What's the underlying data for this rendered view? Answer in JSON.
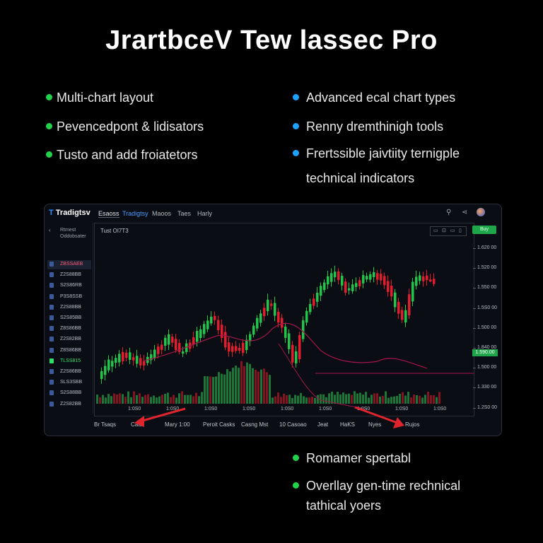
{
  "title": "JrartbceV Tew lassec Pro",
  "features_left": [
    {
      "text": "Multi-chart layout"
    },
    {
      "text": "Pevencedpont & lidisators"
    },
    {
      "text": "Tusto and add froiatetors"
    }
  ],
  "features_right": [
    {
      "text": "Advanced ecal chart types"
    },
    {
      "text": "Renny dremthinigh tools"
    },
    {
      "text": "Frertssible jaivtiity ternigple"
    },
    {
      "text": "technical indicators"
    }
  ],
  "features_bottom": [
    {
      "text": "Romamer spertabl"
    },
    {
      "text": "Overllay gen-time rechnical"
    },
    {
      "text": "tathical yoers"
    }
  ],
  "platform": {
    "logo_mark": "T",
    "logo_text": "Tradigtsv",
    "tabs": [
      "Esaoss",
      "Tradigtsy",
      "Maoos",
      "Taes",
      "Harly"
    ],
    "search_icon": "search-icon",
    "share_icon": "share-icon",
    "sidebar_header": [
      "Rtmest",
      "Oddobsater"
    ],
    "sidebar_items": [
      "ZBSSAEB",
      "Z2S88BB",
      "S2S86RB",
      "P3S8SSB",
      "Z2S88BB",
      "S2S85BB",
      "Z8S86BB",
      "Z2S82BB",
      "Z8S86BB",
      "TLSS815",
      "Z2S86BB",
      "SLS3SBB",
      "S2S88BB",
      "Z2S82BB"
    ],
    "chart_label": "Tust OI7T3",
    "chart_tools": [
      "▭",
      "⊡",
      "▭",
      "▯"
    ],
    "buy_label": "Buy",
    "price_ticks": [
      "1.620 00",
      "1.520 00",
      "1.550 00",
      "1.5S0 00",
      "1.500 00",
      "1.840 00",
      "1.500 00",
      "1.330 00",
      "1.2S0 00"
    ],
    "price_highlight": "1.590.00",
    "time_ticks": [
      "1:0S0",
      "1:0S0",
      "1:0S0",
      "1:0S0",
      "1:0S0",
      "1:0S0",
      "1:0S0",
      "1:0S0",
      "1:0S0"
    ],
    "bottom_bar": [
      "Br Tsaqs",
      "Cats",
      "Mary 1:00",
      "Peroit Casks",
      "Casng Mst",
      "10 Casoao",
      "Jeat",
      "HaKS",
      "Nyes",
      "Rujos"
    ],
    "colors": {
      "up": "#22c44a",
      "down": "#e11d2e",
      "background": "#0a0d14",
      "accent_blue": "#1ea2ff",
      "accent_green": "#22d34a",
      "annotation_red": "#e0242e",
      "overlay_line": "#a4164a"
    }
  }
}
